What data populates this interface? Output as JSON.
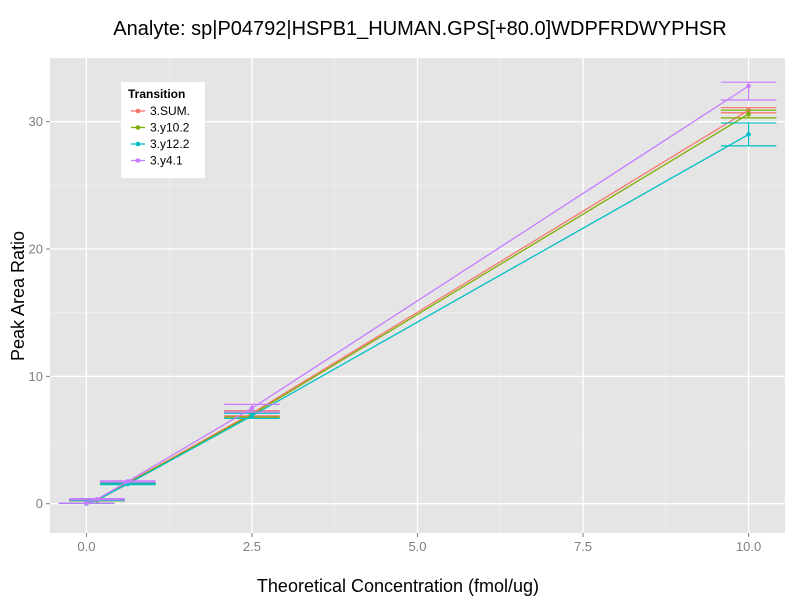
{
  "chart_data": {
    "type": "line",
    "title": "Analyte: sp|P04792|HSPB1_HUMAN.GPS[+80.0]WDPFRDWYPHSR",
    "xlabel": "Theoretical Concentration (fmol/ug)",
    "ylabel": "Peak Area Ratio",
    "xlim": [
      -0.55,
      10.55
    ],
    "ylim": [
      -2.3,
      35.0
    ],
    "x_ticks": [
      0,
      2.5,
      5,
      7.5,
      10
    ],
    "x_tick_labels": [
      "0.0",
      "2.5",
      "5.0",
      "7.5",
      "10.0"
    ],
    "y_ticks": [
      0,
      10,
      20,
      30
    ],
    "y_tick_labels": [
      "0",
      "10",
      "20",
      "30"
    ],
    "grid": true,
    "legend": {
      "title": "Transition",
      "position": "top-left"
    },
    "x": [
      0,
      0.16,
      0.625,
      2.5,
      10
    ],
    "series": [
      {
        "name": "3.SUM.",
        "color": "#F8766D",
        "values": [
          0.03,
          0.28,
          1.65,
          7.1,
          30.9
        ],
        "err_lo": [
          0.03,
          0.24,
          1.6,
          6.9,
          30.7
        ],
        "err_hi": [
          0.03,
          0.32,
          1.7,
          7.3,
          31.1
        ]
      },
      {
        "name": "3.y10.2",
        "color": "#7CAE00",
        "values": [
          0.02,
          0.26,
          1.6,
          7.0,
          30.6
        ],
        "err_lo": [
          0.02,
          0.22,
          1.55,
          6.8,
          30.3
        ],
        "err_hi": [
          0.02,
          0.3,
          1.65,
          7.2,
          30.9
        ]
      },
      {
        "name": "3.y12.2",
        "color": "#00BFC4",
        "values": [
          0.02,
          0.3,
          1.55,
          6.9,
          29.0
        ],
        "err_lo": [
          0.02,
          0.25,
          1.5,
          6.7,
          28.1
        ],
        "err_hi": [
          0.02,
          0.35,
          1.6,
          7.1,
          29.9
        ]
      },
      {
        "name": "3.y4.1",
        "color": "#C77CFF",
        "values": [
          0.04,
          0.35,
          1.75,
          7.5,
          32.8
        ],
        "err_lo": [
          0.04,
          0.3,
          1.7,
          7.2,
          31.7
        ],
        "err_hi": [
          0.04,
          0.4,
          1.8,
          7.8,
          33.1
        ]
      }
    ]
  }
}
